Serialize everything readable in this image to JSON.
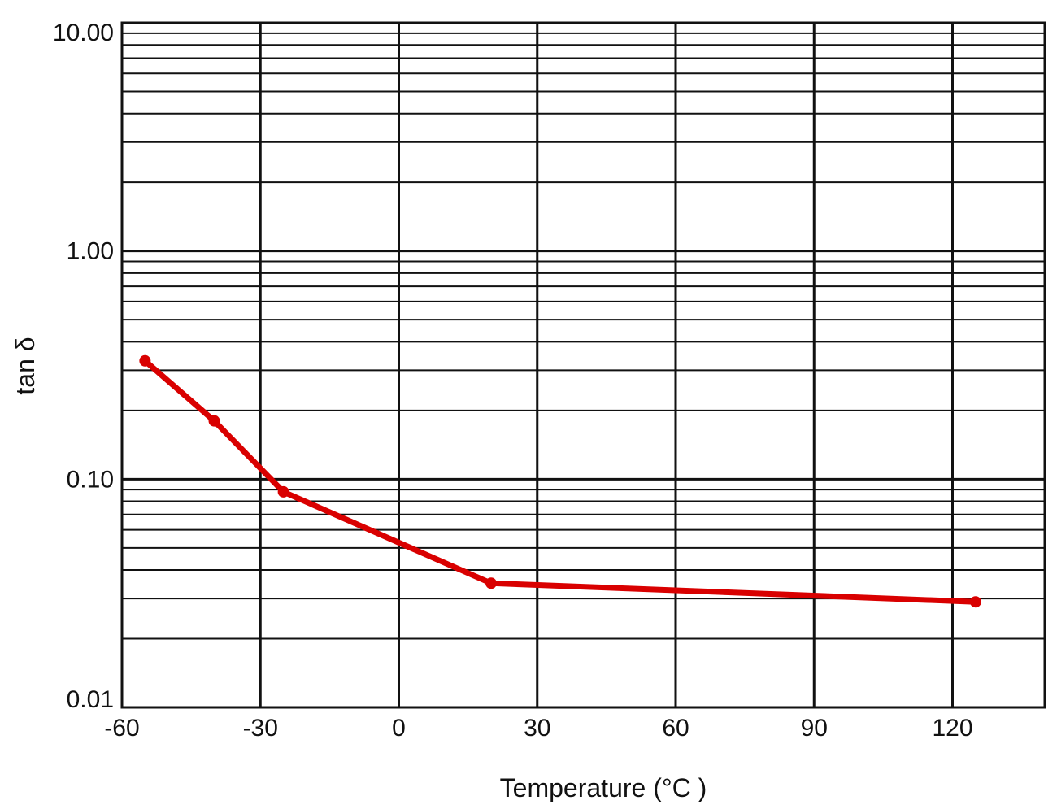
{
  "chart_data": {
    "type": "line",
    "xlabel": "Temperature (°C )",
    "ylabel": "tan δ",
    "xlim": [
      -60,
      140
    ],
    "ylim": [
      0.01,
      10
    ],
    "y_scale": "log",
    "grid": true,
    "x_ticks": [
      -60,
      -30,
      0,
      30,
      60,
      90,
      120
    ],
    "x_tick_labels": [
      "-60",
      "-30",
      "0",
      "30",
      "60",
      "90",
      "120"
    ],
    "y_ticks": [
      0.01,
      0.1,
      1,
      10
    ],
    "y_tick_labels": [
      "0.01",
      "0.10",
      "1.00",
      "10.00"
    ],
    "series": [
      {
        "color": "#d90000",
        "x": [
          -55,
          -40,
          -25,
          20,
          125
        ],
        "y": [
          0.33,
          0.18,
          0.088,
          0.035,
          0.029
        ]
      }
    ]
  }
}
